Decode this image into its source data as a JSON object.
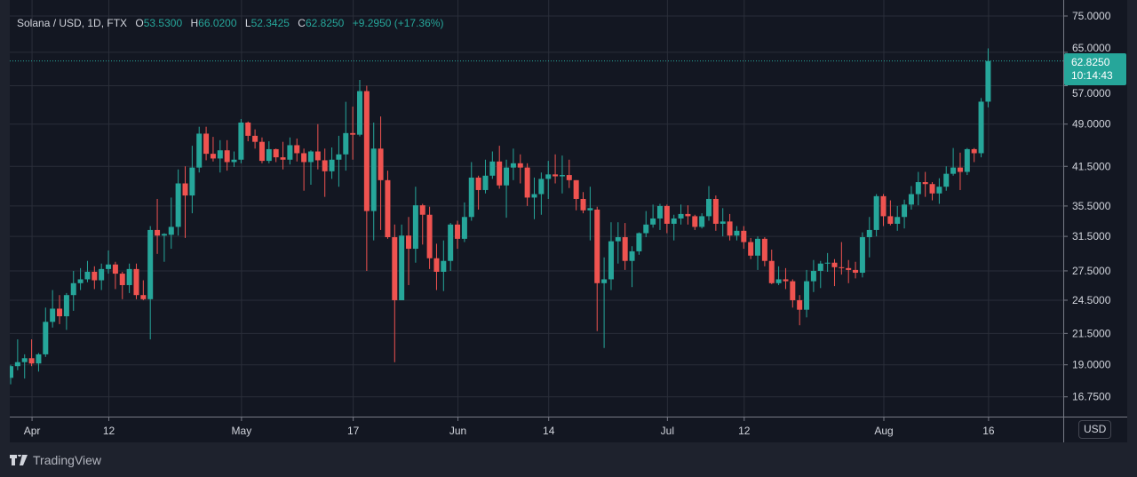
{
  "legend": {
    "symbol": "Solana / USD, 1D, FTX",
    "open_label": "O",
    "open": "53.5300",
    "high_label": "H",
    "high": "66.0200",
    "low_label": "L",
    "low": "52.3425",
    "close_label": "C",
    "close": "62.8250",
    "change": "+9.2950 (+17.36%)"
  },
  "currency_button": "USD",
  "last_price": {
    "price": "62.8250",
    "countdown": "10:14:43"
  },
  "branding": "TradingView",
  "colors": {
    "up": "#26a69a",
    "down": "#ef5350",
    "background": "#131722",
    "grid": "#2a2e39",
    "text": "#d1d4dc"
  },
  "chart_data": {
    "type": "candlestick",
    "title": "Solana / USD, 1D, FTX",
    "y_scale": "log",
    "ylim": [
      16.2,
      75
    ],
    "y_ticks": [
      "75.0000",
      "65.0000",
      "57.0000",
      "49.0000",
      "41.5000",
      "35.5000",
      "31.5000",
      "27.5000",
      "24.5000",
      "21.5000",
      "19.0000",
      "16.7500"
    ],
    "x_start_date": "Mar 29",
    "x_ticks": [
      {
        "label": "Apr",
        "index": 3
      },
      {
        "label": "12",
        "index": 14
      },
      {
        "label": "May",
        "index": 33
      },
      {
        "label": "17",
        "index": 49
      },
      {
        "label": "Jun",
        "index": 64
      },
      {
        "label": "14",
        "index": 77
      },
      {
        "label": "Jul",
        "index": 94
      },
      {
        "label": "12",
        "index": 105
      },
      {
        "label": "Aug",
        "index": 125
      },
      {
        "label": "16",
        "index": 140
      }
    ],
    "grid": true,
    "ohlc": [
      [
        18.05,
        19.0,
        17.6,
        18.9
      ],
      [
        18.9,
        21.0,
        18.6,
        19.2
      ],
      [
        19.2,
        19.8,
        18.0,
        19.5
      ],
      [
        19.5,
        21.0,
        18.9,
        19.1
      ],
      [
        19.1,
        19.9,
        18.5,
        19.8
      ],
      [
        19.8,
        23.8,
        19.6,
        22.5
      ],
      [
        22.5,
        25.5,
        22.0,
        23.7
      ],
      [
        23.7,
        25.0,
        22.3,
        23.0
      ],
      [
        23.0,
        25.2,
        21.8,
        25.0
      ],
      [
        25.0,
        27.5,
        23.5,
        26.2
      ],
      [
        26.2,
        27.8,
        25.5,
        26.6
      ],
      [
        26.6,
        28.6,
        26.3,
        27.4
      ],
      [
        27.4,
        28.0,
        25.6,
        26.5
      ],
      [
        26.5,
        28.3,
        25.5,
        27.7
      ],
      [
        27.7,
        29.8,
        27.2,
        28.2
      ],
      [
        28.2,
        28.5,
        25.6,
        27.2
      ],
      [
        27.2,
        27.4,
        24.6,
        26.0
      ],
      [
        26.0,
        28.3,
        25.2,
        27.7
      ],
      [
        27.7,
        28.3,
        24.6,
        25.0
      ],
      [
        25.0,
        26.5,
        24.5,
        24.6
      ],
      [
        24.6,
        32.8,
        21.0,
        32.3
      ],
      [
        32.3,
        36.5,
        29.4,
        31.6
      ],
      [
        31.6,
        31.9,
        28.5,
        31.8
      ],
      [
        31.7,
        36.7,
        30.0,
        32.7
      ],
      [
        32.7,
        41.0,
        31.6,
        38.8
      ],
      [
        38.8,
        41.5,
        31.3,
        37.0
      ],
      [
        37.0,
        45.0,
        34.5,
        41.3
      ],
      [
        41.3,
        48.5,
        40.5,
        47.2
      ],
      [
        47.2,
        48.5,
        42.5,
        43.6
      ],
      [
        43.6,
        46.6,
        42.3,
        42.8
      ],
      [
        42.8,
        46.0,
        40.5,
        44.2
      ],
      [
        44.2,
        46.0,
        40.8,
        42.2
      ],
      [
        42.2,
        44.0,
        41.4,
        42.6
      ],
      [
        42.6,
        50.0,
        42.0,
        49.3
      ],
      [
        49.3,
        49.5,
        45.8,
        46.8
      ],
      [
        46.8,
        48.0,
        44.5,
        45.7
      ],
      [
        45.7,
        46.5,
        42.0,
        42.4
      ],
      [
        42.4,
        45.8,
        42.0,
        44.4
      ],
      [
        44.4,
        44.5,
        42.2,
        43.0
      ],
      [
        43.0,
        45.7,
        41.0,
        42.6
      ],
      [
        42.6,
        46.5,
        41.8,
        45.1
      ],
      [
        45.1,
        46.3,
        42.3,
        43.7
      ],
      [
        43.7,
        44.5,
        37.7,
        42.2
      ],
      [
        42.2,
        44.2,
        38.6,
        44.0
      ],
      [
        44.0,
        49.0,
        41.0,
        42.5
      ],
      [
        42.5,
        44.5,
        36.8,
        40.7
      ],
      [
        40.7,
        44.7,
        39.5,
        42.6
      ],
      [
        42.6,
        46.8,
        38.3,
        43.5
      ],
      [
        43.5,
        53.5,
        40.8,
        47.3
      ],
      [
        47.3,
        52.5,
        42.6,
        47.0
      ],
      [
        47.0,
        58.3,
        46.7,
        55.8
      ],
      [
        55.8,
        57.0,
        27.5,
        34.8
      ],
      [
        34.8,
        49.3,
        31.0,
        44.5
      ],
      [
        44.5,
        50.5,
        32.3,
        39.3
      ],
      [
        39.3,
        40.8,
        31.2,
        31.4
      ],
      [
        31.4,
        33.0,
        19.2,
        24.5
      ],
      [
        24.5,
        33.0,
        24.5,
        31.6
      ],
      [
        31.6,
        34.0,
        26.0,
        30.0
      ],
      [
        30.0,
        38.3,
        28.4,
        35.6
      ],
      [
        35.6,
        35.8,
        30.5,
        34.3
      ],
      [
        34.3,
        35.4,
        27.7,
        28.9
      ],
      [
        28.9,
        30.6,
        25.5,
        27.4
      ],
      [
        27.4,
        31.0,
        25.4,
        28.6
      ],
      [
        28.6,
        33.2,
        27.5,
        33.0
      ],
      [
        33.0,
        33.5,
        30.0,
        31.2
      ],
      [
        31.2,
        36.0,
        30.8,
        34.0
      ],
      [
        34.0,
        42.2,
        33.5,
        39.7
      ],
      [
        39.7,
        40.0,
        35.0,
        37.8
      ],
      [
        37.8,
        42.6,
        37.3,
        40.0
      ],
      [
        40.0,
        44.0,
        39.5,
        42.3
      ],
      [
        42.3,
        45.0,
        38.0,
        38.5
      ],
      [
        38.5,
        42.6,
        33.9,
        41.3
      ],
      [
        41.3,
        44.5,
        39.3,
        42.0
      ],
      [
        42.0,
        43.5,
        38.8,
        41.3
      ],
      [
        41.3,
        42.0,
        35.5,
        36.7
      ],
      [
        36.7,
        39.7,
        33.7,
        37.2
      ],
      [
        37.2,
        40.5,
        34.3,
        39.5
      ],
      [
        39.5,
        42.4,
        36.5,
        40.2
      ],
      [
        40.2,
        43.5,
        38.8,
        39.9
      ],
      [
        39.9,
        43.3,
        37.3,
        40.1
      ],
      [
        40.1,
        42.6,
        38.1,
        39.3
      ],
      [
        39.3,
        39.3,
        34.9,
        36.5
      ],
      [
        36.5,
        37.5,
        34.5,
        34.9
      ],
      [
        34.9,
        38.3,
        31.0,
        35.2
      ],
      [
        35.0,
        35.4,
        21.7,
        26.2
      ],
      [
        26.2,
        29.0,
        20.3,
        26.6
      ],
      [
        26.6,
        33.3,
        25.5,
        30.9
      ],
      [
        30.9,
        33.3,
        28.3,
        31.4
      ],
      [
        31.4,
        33.2,
        27.6,
        28.6
      ],
      [
        28.6,
        30.3,
        25.8,
        29.7
      ],
      [
        29.7,
        32.0,
        29.3,
        31.9
      ],
      [
        31.9,
        34.8,
        31.4,
        33.0
      ],
      [
        33.0,
        35.7,
        32.6,
        33.8
      ],
      [
        33.8,
        35.8,
        32.3,
        35.5
      ],
      [
        35.5,
        35.7,
        31.9,
        33.1
      ],
      [
        33.1,
        34.3,
        31.0,
        33.8
      ],
      [
        33.8,
        35.7,
        33.0,
        34.4
      ],
      [
        34.4,
        35.6,
        33.0,
        34.1
      ],
      [
        34.1,
        34.3,
        32.3,
        32.7
      ],
      [
        32.7,
        34.5,
        32.5,
        34.1
      ],
      [
        34.1,
        38.4,
        33.5,
        36.5
      ],
      [
        36.5,
        37.0,
        32.2,
        33.1
      ],
      [
        33.1,
        35.2,
        31.5,
        33.4
      ],
      [
        33.4,
        34.4,
        31.0,
        31.6
      ],
      [
        31.6,
        32.8,
        31.0,
        32.2
      ],
      [
        32.2,
        32.8,
        30.0,
        30.8
      ],
      [
        30.8,
        31.3,
        28.8,
        29.2
      ],
      [
        29.2,
        31.5,
        27.6,
        31.2
      ],
      [
        31.2,
        31.4,
        28.0,
        28.6
      ],
      [
        28.6,
        29.9,
        26.1,
        26.2
      ],
      [
        26.2,
        28.0,
        26.0,
        26.6
      ],
      [
        26.6,
        27.8,
        25.6,
        26.4
      ],
      [
        26.4,
        26.6,
        23.8,
        24.5
      ],
      [
        24.5,
        25.0,
        22.2,
        23.6
      ],
      [
        23.6,
        27.6,
        22.9,
        26.4
      ],
      [
        26.4,
        28.7,
        25.3,
        27.5
      ],
      [
        27.5,
        28.6,
        25.7,
        28.3
      ],
      [
        28.3,
        29.5,
        27.4,
        28.4
      ],
      [
        28.4,
        28.8,
        25.9,
        27.9
      ],
      [
        27.9,
        30.8,
        27.1,
        27.8
      ],
      [
        27.8,
        28.7,
        26.2,
        27.6
      ],
      [
        27.6,
        28.5,
        26.7,
        27.3
      ],
      [
        27.3,
        32.0,
        26.8,
        31.4
      ],
      [
        31.4,
        34.0,
        29.0,
        32.3
      ],
      [
        32.3,
        37.2,
        31.5,
        36.9
      ],
      [
        36.9,
        37.2,
        32.8,
        34.1
      ],
      [
        34.1,
        36.3,
        32.9,
        33.1
      ],
      [
        33.1,
        35.5,
        32.2,
        34.0
      ],
      [
        34.0,
        36.4,
        32.5,
        35.7
      ],
      [
        35.7,
        38.4,
        35.0,
        37.2
      ],
      [
        37.2,
        40.6,
        35.6,
        39.0
      ],
      [
        39.0,
        40.6,
        36.8,
        38.7
      ],
      [
        38.7,
        39.0,
        36.3,
        37.3
      ],
      [
        37.3,
        39.6,
        35.8,
        38.3
      ],
      [
        38.3,
        41.5,
        37.7,
        40.3
      ],
      [
        40.3,
        44.6,
        40.0,
        41.3
      ],
      [
        41.3,
        43.8,
        37.8,
        40.6
      ],
      [
        40.6,
        44.6,
        40.1,
        44.4
      ],
      [
        44.4,
        44.6,
        42.2,
        43.7
      ],
      [
        43.7,
        54.3,
        43.0,
        53.53
      ],
      [
        53.53,
        66.02,
        52.3425,
        62.825
      ]
    ]
  }
}
